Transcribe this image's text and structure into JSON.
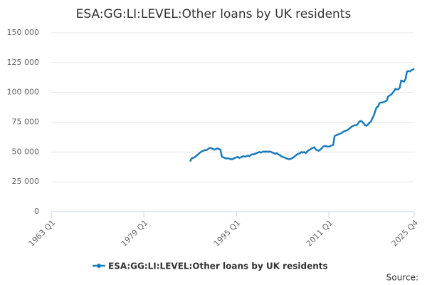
{
  "chart_data": {
    "type": "line",
    "title": "ESA:GG:LI:LEVEL:Other loans by UK residents",
    "source_label": "Source:",
    "categories": [
      "1963 Q1",
      null,
      null,
      null,
      null,
      null,
      null,
      null,
      null,
      null,
      null,
      null,
      null,
      null,
      null,
      null,
      null,
      null,
      null,
      null,
      null,
      null,
      null,
      null,
      null,
      null,
      null,
      null,
      null,
      null,
      null,
      null,
      null,
      null,
      null,
      null,
      null,
      null,
      null,
      null,
      null,
      null,
      null,
      null,
      null,
      null,
      null,
      null,
      null,
      null,
      null,
      null,
      null,
      null,
      null,
      null,
      null,
      null,
      null,
      null,
      null,
      null,
      null,
      null,
      "1979 Q1",
      null,
      null,
      null,
      null,
      null,
      null,
      null,
      null,
      null,
      null,
      null,
      null,
      null,
      null,
      null,
      null,
      null,
      null,
      null,
      null,
      null,
      null,
      null,
      null,
      null,
      null,
      null,
      null,
      null,
      null,
      null,
      null,
      null,
      null,
      null,
      null,
      null,
      null,
      null,
      null,
      null,
      null,
      null,
      null,
      null,
      null,
      null,
      null,
      null,
      null,
      null,
      null,
      null,
      null,
      null,
      null,
      null,
      null,
      null,
      null,
      null,
      null,
      null,
      "1995 Q1",
      null,
      null,
      null,
      null,
      null,
      null,
      null,
      null,
      null,
      null,
      null,
      null,
      null,
      null,
      null,
      null,
      null,
      null,
      null,
      null,
      null,
      null,
      null,
      null,
      null,
      null,
      null,
      null,
      null,
      null,
      null,
      null,
      null,
      null,
      null,
      null,
      null,
      null,
      null,
      null,
      null,
      null,
      null,
      null,
      null,
      null,
      null,
      null,
      null,
      null,
      null,
      null,
      null,
      null,
      null,
      null,
      null,
      null,
      null,
      null,
      null,
      null,
      null,
      "2011 Q1",
      null,
      null,
      null,
      null,
      null,
      null,
      null,
      null,
      null,
      null,
      null,
      null,
      null,
      null,
      null,
      null,
      null,
      null,
      null,
      null,
      null,
      null,
      null,
      null,
      null,
      null,
      null,
      null,
      null,
      null,
      null,
      null,
      null,
      null,
      null,
      null,
      null,
      null,
      null,
      null,
      null,
      null,
      null,
      null,
      null,
      null,
      null,
      null,
      null,
      null,
      null,
      null,
      null,
      null,
      null,
      null,
      null,
      null,
      "2025 Q4"
    ],
    "series": [
      {
        "name": "ESA:GG:LI:LEVEL:Other loans by UK residents",
        "color": "#1b7bba",
        "values": [
          null,
          null,
          null,
          null,
          null,
          null,
          null,
          null,
          null,
          null,
          null,
          null,
          null,
          null,
          null,
          null,
          null,
          null,
          null,
          null,
          null,
          null,
          null,
          null,
          null,
          null,
          null,
          null,
          null,
          null,
          null,
          null,
          null,
          null,
          null,
          null,
          null,
          null,
          null,
          null,
          null,
          null,
          null,
          null,
          null,
          null,
          null,
          null,
          null,
          null,
          null,
          null,
          null,
          null,
          null,
          null,
          null,
          null,
          null,
          null,
          null,
          null,
          null,
          null,
          null,
          null,
          null,
          null,
          null,
          null,
          null,
          null,
          null,
          null,
          null,
          null,
          null,
          null,
          null,
          null,
          null,
          null,
          null,
          null,
          null,
          null,
          null,
          null,
          null,
          null,
          null,
          null,
          null,
          null,
          null,
          null,
          42000,
          44500,
          45000,
          45500,
          46500,
          47500,
          48500,
          49500,
          50500,
          51000,
          51500,
          51500,
          52000,
          53000,
          53500,
          53000,
          52500,
          52000,
          52500,
          53000,
          52500,
          52000,
          46000,
          45500,
          45000,
          44500,
          44800,
          44500,
          44000,
          43800,
          44500,
          45000,
          45500,
          46000,
          45000,
          45500,
          46000,
          46500,
          46000,
          46500,
          47000,
          46500,
          47500,
          48000,
          48000,
          48500,
          49000,
          49500,
          50000,
          49500,
          50000,
          50500,
          50000,
          50500,
          50000,
          50500,
          50000,
          49500,
          49000,
          48500,
          49000,
          48000,
          47500,
          46500,
          46000,
          45500,
          45000,
          44500,
          44000,
          44000,
          44500,
          45000,
          46000,
          47000,
          48000,
          48500,
          49000,
          50000,
          49500,
          50000,
          49000,
          50500,
          51500,
          52000,
          53000,
          53500,
          54000,
          52000,
          51500,
          51000,
          52000,
          53000,
          54500,
          55000,
          55000,
          54500,
          54500,
          55000,
          55500,
          56000,
          63500,
          64000,
          64500,
          65000,
          65500,
          66000,
          67000,
          67500,
          68000,
          68500,
          69500,
          70500,
          71500,
          72000,
          72500,
          72500,
          73500,
          75500,
          76000,
          75500,
          74000,
          72500,
          72000,
          73000,
          74500,
          75500,
          78000,
          80500,
          84000,
          87500,
          88000,
          91000,
          91500,
          91500,
          92000,
          92500,
          93000,
          96500,
          97500,
          98000,
          99500,
          101000,
          103000,
          102500,
          102500,
          104000,
          110000,
          109500,
          109000,
          111000,
          117500,
          118000,
          117500,
          118500,
          119000,
          120000
        ]
      }
    ],
    "ylim": [
      0,
      150000
    ],
    "yticks": [
      0,
      {
        "value": 25000,
        "label": "25 000"
      },
      {
        "value": 50000,
        "label": "50 000"
      },
      {
        "value": 75000,
        "label": "75 000"
      },
      {
        "value": 100000,
        "label": "100 000"
      },
      {
        "value": 125000,
        "label": "125 000"
      },
      {
        "value": 150000,
        "label": "150 000"
      }
    ],
    "grid": true
  }
}
